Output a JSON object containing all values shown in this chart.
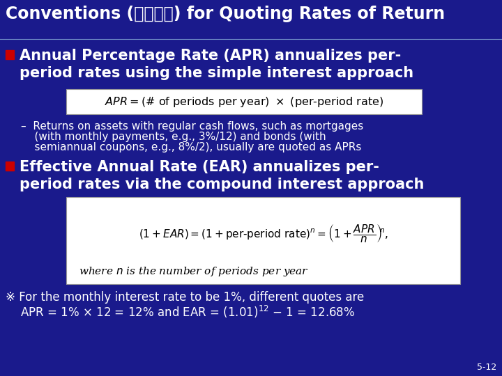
{
  "bg_color": "#1a1a8c",
  "title": "Conventions (市場慣例) for Quoting Rates of Return",
  "title_color": "#ffffff",
  "title_fontsize": 17,
  "bullet_color": "#cc0000",
  "bullet1_line1": "Annual Percentage Rate (APR) annualizes per-",
  "bullet1_line2": "period rates using the simple interest approach",
  "bullet_fontsize": 15,
  "formula1_text": "APR = (# of periods per year)  ×  (per-period rate)",
  "formula1_bg": "#ffffff",
  "formula1_color": "#000000",
  "sub1": "–  Returns on assets with regular cash flows, such as mortgages",
  "sub2": "    (with monthly payments, e.g., 3%/12) and bonds (with",
  "sub3": "    semiannual coupons, e.g., 8%/2), usually are quoted as APRs",
  "sub_fontsize": 11,
  "sub_color": "#ffffff",
  "bullet2_line1": "Effective Annual Rate (EAR) annualizes per-",
  "bullet2_line2": "period rates via the compound interest approach",
  "formula2_bg": "#ffffff",
  "formula2_color": "#000000",
  "note1": "※ For the monthly interest rate to be 1%, different quotes are",
  "note2": "    APR = 1% × 12 = 12% and EAR = (1.01)",
  "note2b": " – 1 = 12.68%",
  "note_fontsize": 12,
  "note_color": "#ffffff",
  "slide_number": "5-12",
  "slide_num_color": "#ffffff",
  "slide_num_fontsize": 9
}
